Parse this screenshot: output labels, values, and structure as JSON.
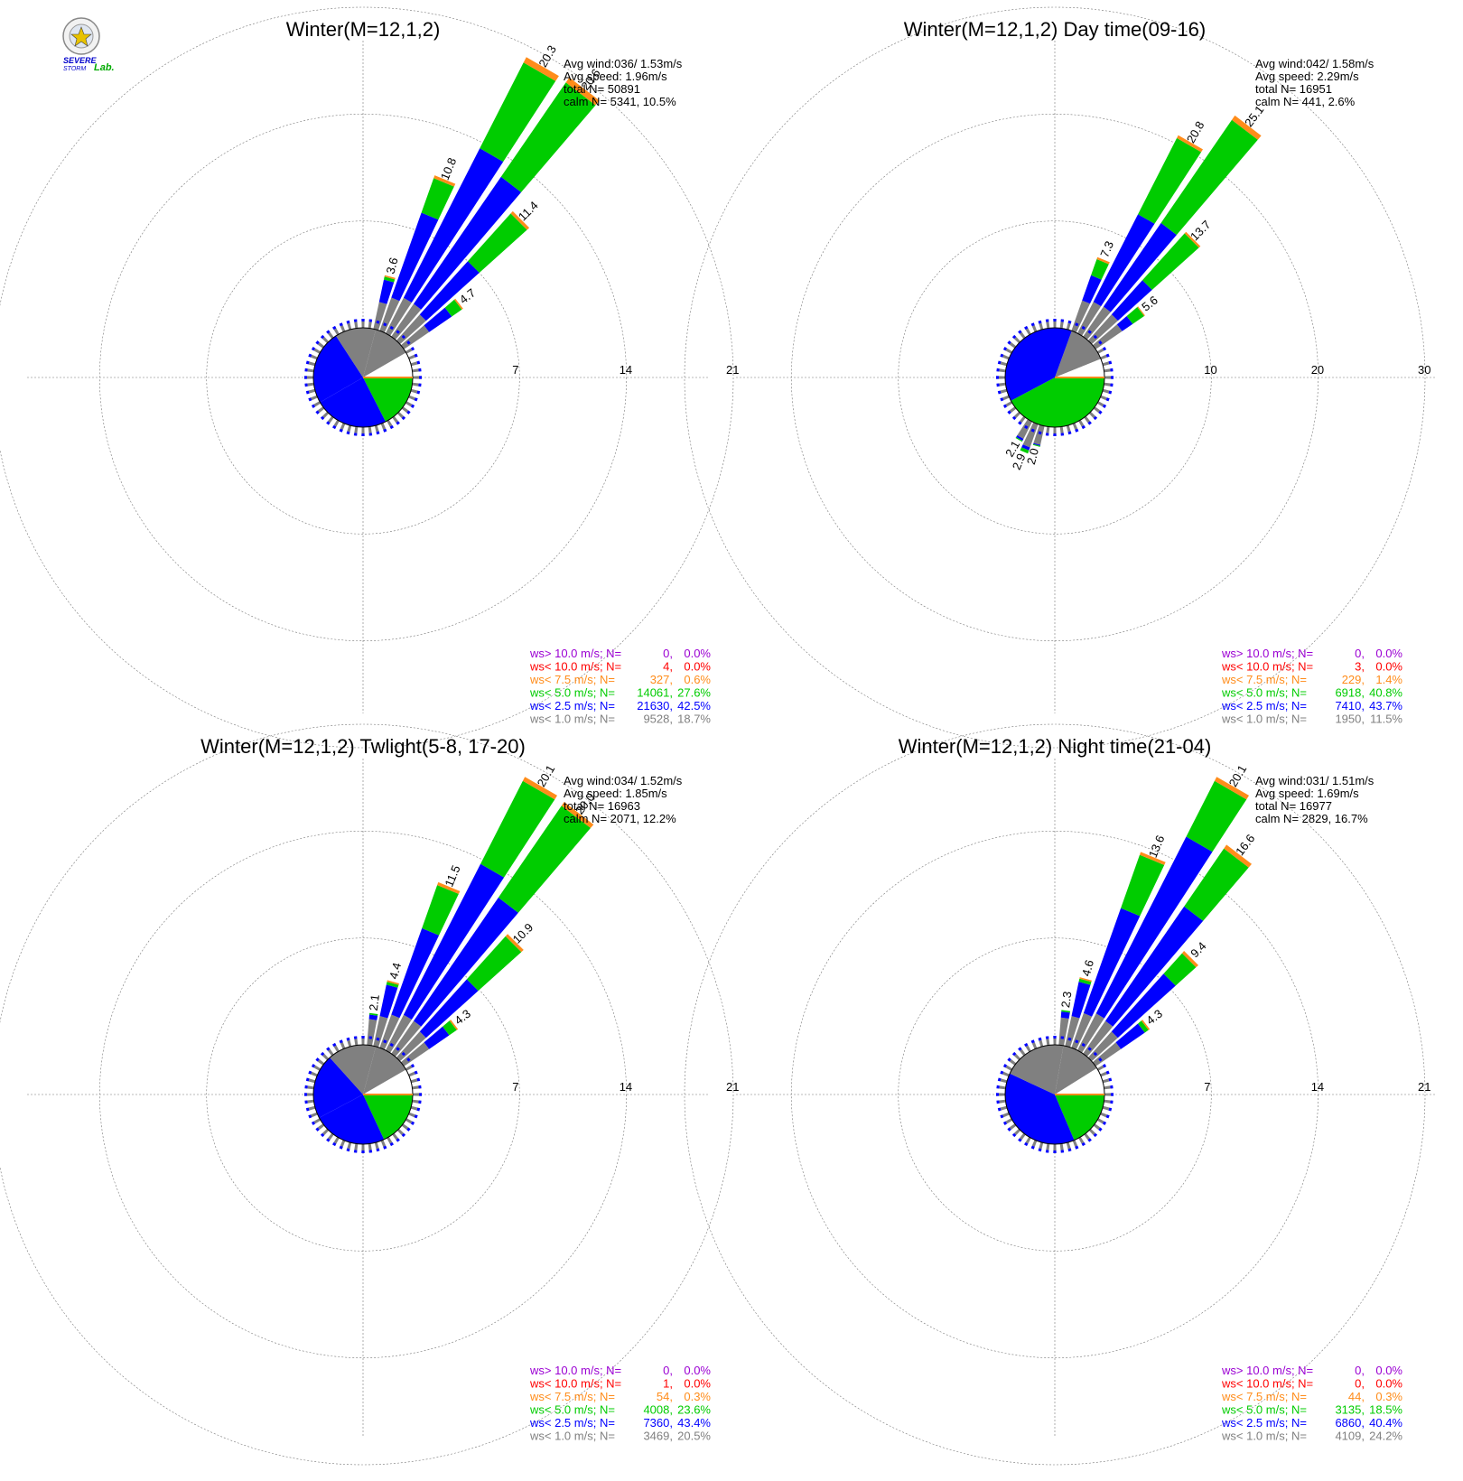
{
  "logo": {
    "line1": "SEVERE",
    "line2": "STORM",
    "line3": "Lab."
  },
  "colors": {
    "gt10": "#9b00d3",
    "lt10": "#ff0000",
    "lt75": "#ff8c1a",
    "lt5": "#00cc00",
    "lt25": "#0000ff",
    "lt1": "#808080",
    "calm": "#ffffff"
  },
  "legend_labels": [
    "ws> 10.0 m/s; N=",
    "ws< 10.0 m/s; N=",
    "ws<  7.5 m/s; N=",
    "ws<  5.0 m/s; N=",
    "ws<  2.5 m/s; N=",
    "ws<  1.0 m/s; N="
  ],
  "chart_data": [
    {
      "type": "polar-bar",
      "title": "Winter(M=12,1,2)",
      "stats": {
        "avg_wind": "Avg wind:036/ 1.53m/s",
        "avg_speed": "Avg speed: 1.96m/s",
        "total": "total N=      50891",
        "calm": "calm N=   5341,  10.5%"
      },
      "rings": [
        7,
        14,
        21
      ],
      "ring_labels": [
        "7",
        "14",
        "21"
      ],
      "petals": [
        {
          "deg": 15,
          "total": 3.6,
          "gray": 1.8,
          "blue": 3.3,
          "green": 3.5,
          "label": "3.6"
        },
        {
          "deg": 22.5,
          "total": 10.8,
          "gray": 2.3,
          "blue": 8.2,
          "green": 10.6,
          "label": "10.8"
        },
        {
          "deg": 30,
          "total": 20.3,
          "gray": 2.6,
          "blue": 13.6,
          "green": 19.9,
          "label": "20.3"
        },
        {
          "deg": 37.5,
          "total": 20.6,
          "gray": 2.6,
          "blue": 12.7,
          "green": 20.2,
          "label": "20.6"
        },
        {
          "deg": 45,
          "total": 11.4,
          "gray": 2.3,
          "blue": 7.0,
          "green": 11.2,
          "label": "11.4"
        },
        {
          "deg": 52.5,
          "total": 4.7,
          "gray": 2.0,
          "blue": 3.8,
          "green": 4.6,
          "label": "4.7"
        }
      ],
      "sectors": [
        {
          "from": 15,
          "to": 60,
          "color": "lt1"
        },
        {
          "from": 60,
          "to": 90,
          "color": "calm"
        },
        {
          "from": 90,
          "to": 153,
          "color": "lt5"
        },
        {
          "from": 153,
          "to": 240,
          "color": "lt25"
        },
        {
          "from": 240,
          "to": 327,
          "color": "lt25"
        },
        {
          "from": 327,
          "to": 375,
          "color": "lt1"
        }
      ],
      "legend": [
        {
          "n": "0",
          "pct": "0.0%"
        },
        {
          "n": "4",
          "pct": "0.0%"
        },
        {
          "n": "327",
          "pct": "0.6%"
        },
        {
          "n": "14061",
          "pct": "27.6%"
        },
        {
          "n": "21630",
          "pct": "42.5%"
        },
        {
          "n": "9528",
          "pct": "18.7%"
        }
      ]
    },
    {
      "type": "polar-bar",
      "title": "Winter(M=12,1,2) Day time(09-16)",
      "stats": {
        "avg_wind": "Avg wind:042/ 1.58m/s",
        "avg_speed": "Avg speed: 2.29m/s",
        "total": "total N=      16951",
        "calm": "calm N=    441,   2.6%"
      },
      "rings": [
        10,
        20,
        30
      ],
      "ring_labels": [
        "10",
        "20",
        "30"
      ],
      "petals": [
        {
          "deg": 22.5,
          "total": 7.3,
          "gray": 3.0,
          "blue": 5.5,
          "green": 7.1,
          "label": "7.3"
        },
        {
          "deg": 30,
          "total": 20.8,
          "gray": 3.3,
          "blue": 12.5,
          "green": 20.5,
          "label": "20.8"
        },
        {
          "deg": 37.5,
          "total": 25.1,
          "gray": 3.4,
          "blue": 12.9,
          "green": 24.6,
          "label": "25.1"
        },
        {
          "deg": 45,
          "total": 13.7,
          "gray": 3.3,
          "blue": 7.6,
          "green": 13.5,
          "label": "13.7"
        },
        {
          "deg": 52.5,
          "total": 5.6,
          "gray": 3.0,
          "blue": 4.2,
          "green": 5.5,
          "label": "5.6"
        },
        {
          "deg": 202.5,
          "total": 2.9,
          "gray": 2.3,
          "blue": 2.6,
          "green": 2.9,
          "label": "2.9"
        },
        {
          "deg": 210,
          "total": 2.1,
          "gray": 1.8,
          "blue": 2.0,
          "green": 2.1,
          "label": "2.1"
        },
        {
          "deg": 195,
          "total": 2.0,
          "gray": 1.8,
          "blue": 1.9,
          "green": 2.0,
          "label": "2.0"
        }
      ],
      "sectors": [
        {
          "from": 20,
          "to": 68,
          "color": "lt1"
        },
        {
          "from": 68,
          "to": 90,
          "color": "calm"
        },
        {
          "from": 90,
          "to": 242,
          "color": "lt5"
        },
        {
          "from": 242,
          "to": 380,
          "color": "lt25"
        }
      ],
      "legend": [
        {
          "n": "0",
          "pct": "0.0%"
        },
        {
          "n": "3",
          "pct": "0.0%"
        },
        {
          "n": "229",
          "pct": "1.4%"
        },
        {
          "n": "6918",
          "pct": "40.8%"
        },
        {
          "n": "7410",
          "pct": "43.7%"
        },
        {
          "n": "1950",
          "pct": "11.5%"
        }
      ]
    },
    {
      "type": "polar-bar",
      "title": "Winter(M=12,1,2) Twlight(5-8, 17-20)",
      "stats": {
        "avg_wind": "Avg wind:034/ 1.52m/s",
        "avg_speed": "Avg speed: 1.85m/s",
        "total": "total N=      16963",
        "calm": "calm N=   2071,  12.2%"
      },
      "rings": [
        7,
        14,
        21
      ],
      "ring_labels": [
        "7",
        "14",
        "21"
      ],
      "petals": [
        {
          "deg": 7.5,
          "total": 2.1,
          "gray": 1.7,
          "blue": 2.0,
          "green": 2.1,
          "label": "2.1"
        },
        {
          "deg": 15,
          "total": 4.4,
          "gray": 2.0,
          "blue": 4.1,
          "green": 4.3,
          "label": "4.4"
        },
        {
          "deg": 22.5,
          "total": 11.5,
          "gray": 2.3,
          "blue": 8.3,
          "green": 11.3,
          "label": "11.5"
        },
        {
          "deg": 30,
          "total": 20.1,
          "gray": 2.6,
          "blue": 13.7,
          "green": 19.8,
          "label": "20.1"
        },
        {
          "deg": 37.5,
          "total": 20.0,
          "gray": 2.6,
          "blue": 12.4,
          "green": 19.7,
          "label": "20.0"
        },
        {
          "deg": 45,
          "total": 10.9,
          "gray": 2.3,
          "blue": 6.9,
          "green": 10.7,
          "label": "10.9"
        },
        {
          "deg": 52.5,
          "total": 4.3,
          "gray": 2.0,
          "blue": 3.6,
          "green": 4.2,
          "label": "4.3"
        }
      ],
      "sectors": [
        {
          "from": 15,
          "to": 60,
          "color": "lt1"
        },
        {
          "from": 60,
          "to": 90,
          "color": "calm"
        },
        {
          "from": 90,
          "to": 155,
          "color": "lt5"
        },
        {
          "from": 155,
          "to": 242,
          "color": "lt25"
        },
        {
          "from": 242,
          "to": 318,
          "color": "lt25"
        },
        {
          "from": 318,
          "to": 375,
          "color": "lt1"
        }
      ],
      "legend": [
        {
          "n": "0",
          "pct": "0.0%"
        },
        {
          "n": "1",
          "pct": "0.0%"
        },
        {
          "n": "54",
          "pct": "0.3%"
        },
        {
          "n": "4008",
          "pct": "23.6%"
        },
        {
          "n": "7360",
          "pct": "43.4%"
        },
        {
          "n": "3469",
          "pct": "20.5%"
        }
      ]
    },
    {
      "type": "polar-bar",
      "title": "Winter(M=12,1,2) Night time(21-04)",
      "stats": {
        "avg_wind": "Avg wind:031/ 1.51m/s",
        "avg_speed": "Avg speed: 1.69m/s",
        "total": "total N=      16977",
        "calm": "calm N=   2829,  16.7%"
      },
      "rings": [
        7,
        14,
        21
      ],
      "ring_labels": [
        "7",
        "14",
        "21"
      ],
      "petals": [
        {
          "deg": 7.5,
          "total": 2.3,
          "gray": 1.8,
          "blue": 2.2,
          "green": 2.3,
          "label": "2.3"
        },
        {
          "deg": 15,
          "total": 4.6,
          "gray": 2.0,
          "blue": 4.3,
          "green": 4.5,
          "label": "4.6"
        },
        {
          "deg": 22.5,
          "total": 13.6,
          "gray": 2.4,
          "blue": 9.7,
          "green": 13.4,
          "label": "13.6"
        },
        {
          "deg": 30,
          "total": 20.1,
          "gray": 2.7,
          "blue": 15.7,
          "green": 19.8,
          "label": "20.1"
        },
        {
          "deg": 37.5,
          "total": 16.6,
          "gray": 2.6,
          "blue": 11.7,
          "green": 16.3,
          "label": "16.6"
        },
        {
          "deg": 45,
          "total": 9.4,
          "gray": 2.3,
          "blue": 7.4,
          "green": 9.2,
          "label": "9.4"
        },
        {
          "deg": 52.5,
          "total": 4.3,
          "gray": 2.0,
          "blue": 3.9,
          "green": 4.2,
          "label": "4.3"
        }
      ],
      "sectors": [
        {
          "from": 10,
          "to": 58,
          "color": "lt1"
        },
        {
          "from": 58,
          "to": 90,
          "color": "calm"
        },
        {
          "from": 90,
          "to": 157,
          "color": "lt5"
        },
        {
          "from": 157,
          "to": 295,
          "color": "lt25"
        },
        {
          "from": 295,
          "to": 370,
          "color": "lt1"
        }
      ],
      "legend": [
        {
          "n": "0",
          "pct": "0.0%"
        },
        {
          "n": "0",
          "pct": "0.0%"
        },
        {
          "n": "44",
          "pct": "0.3%"
        },
        {
          "n": "3135",
          "pct": "18.5%"
        },
        {
          "n": "6860",
          "pct": "40.4%"
        },
        {
          "n": "4109",
          "pct": "24.2%"
        }
      ]
    }
  ]
}
